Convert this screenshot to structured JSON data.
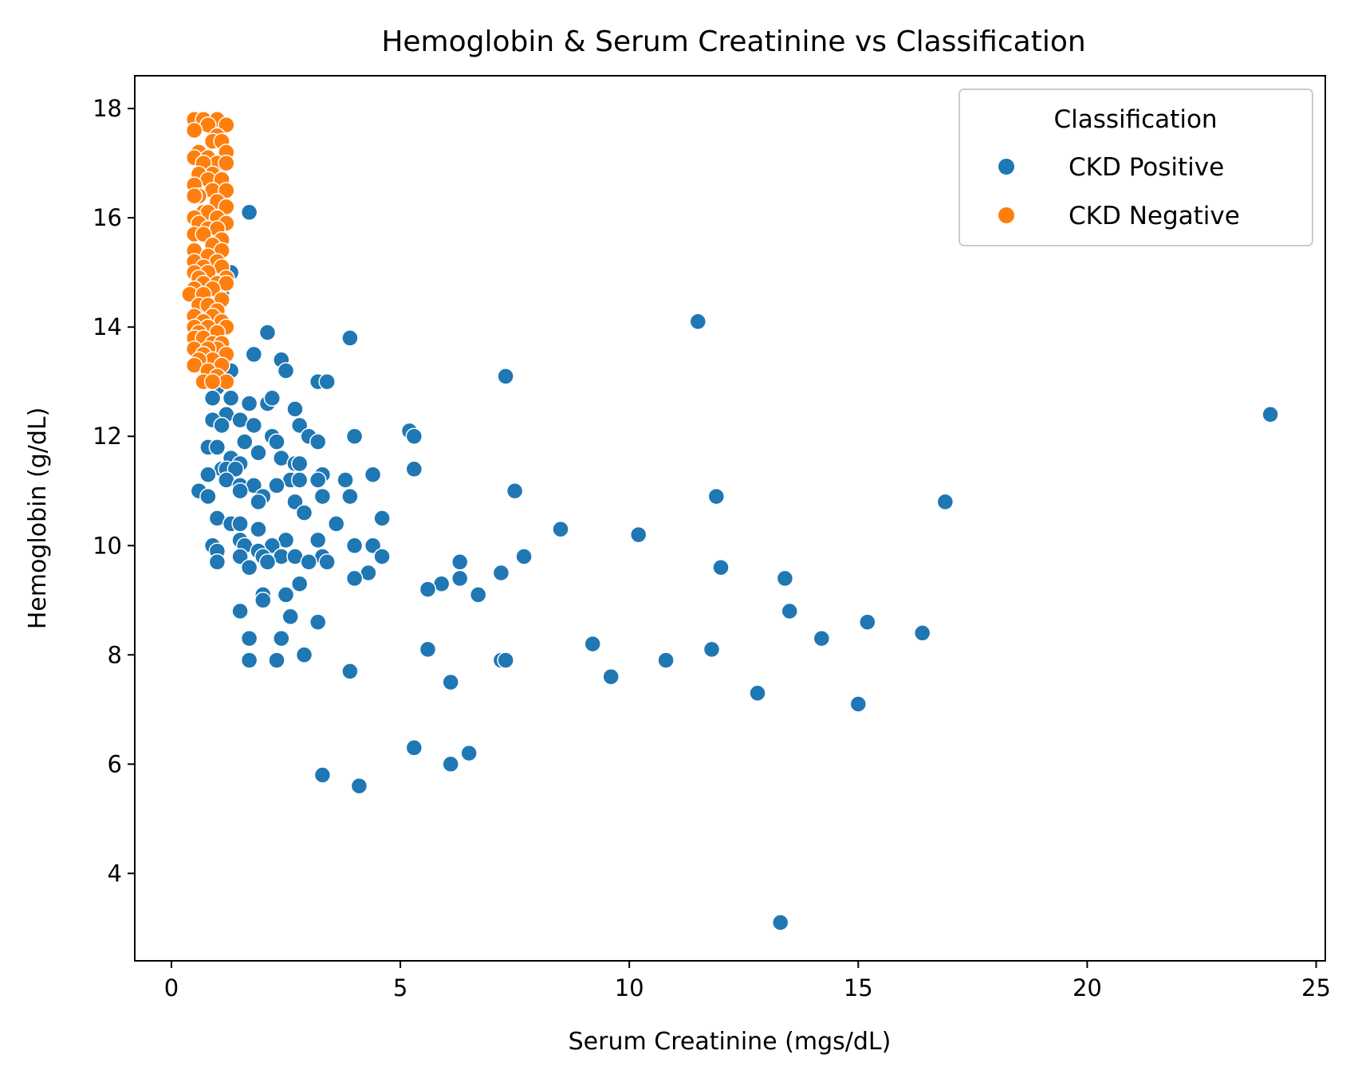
{
  "chart_data": {
    "type": "scatter",
    "title": "Hemoglobin & Serum Creatinine vs Classification",
    "xlabel": "Serum Creatinine (mgs/dL)",
    "ylabel": "Hemoglobin (g/dL)",
    "xlim": [
      -0.8,
      25.2
    ],
    "ylim": [
      2.4,
      18.6
    ],
    "x_ticks": [
      0,
      5,
      10,
      15,
      20,
      25
    ],
    "y_ticks": [
      4,
      6,
      8,
      10,
      12,
      14,
      16,
      18
    ],
    "grid": false,
    "legend": {
      "title": "Classification",
      "placement": "top-right",
      "entries": [
        "CKD Positive",
        "CKD Negative"
      ]
    },
    "series": [
      {
        "name": "CKD Positive",
        "color": "#1f77b4",
        "points": [
          [
            1.7,
            16.1
          ],
          [
            1.2,
            15.0
          ],
          [
            1.3,
            15.0
          ],
          [
            1.0,
            15.3
          ],
          [
            1.1,
            14.6
          ],
          [
            2.1,
            13.9
          ],
          [
            3.9,
            13.8
          ],
          [
            1.8,
            13.5
          ],
          [
            2.4,
            13.4
          ],
          [
            2.5,
            13.2
          ],
          [
            1.3,
            13.2
          ],
          [
            3.2,
            13.0
          ],
          [
            3.4,
            13.0
          ],
          [
            1.0,
            12.9
          ],
          [
            0.9,
            12.7
          ],
          [
            1.3,
            12.7
          ],
          [
            1.7,
            12.6
          ],
          [
            2.1,
            12.6
          ],
          [
            2.2,
            12.7
          ],
          [
            2.7,
            12.5
          ],
          [
            1.2,
            12.4
          ],
          [
            0.9,
            12.3
          ],
          [
            1.5,
            12.3
          ],
          [
            1.1,
            12.2
          ],
          [
            1.8,
            12.2
          ],
          [
            2.8,
            12.2
          ],
          [
            5.2,
            12.1
          ],
          [
            5.3,
            12.0
          ],
          [
            4.0,
            12.0
          ],
          [
            3.0,
            12.0
          ],
          [
            2.2,
            12.0
          ],
          [
            1.6,
            11.9
          ],
          [
            2.3,
            11.9
          ],
          [
            3.2,
            11.9
          ],
          [
            0.8,
            11.8
          ],
          [
            1.0,
            11.8
          ],
          [
            1.9,
            11.7
          ],
          [
            2.4,
            11.6
          ],
          [
            1.3,
            11.6
          ],
          [
            1.5,
            11.5
          ],
          [
            2.7,
            11.5
          ],
          [
            2.8,
            11.5
          ],
          [
            5.3,
            11.4
          ],
          [
            1.1,
            11.4
          ],
          [
            1.2,
            11.4
          ],
          [
            1.4,
            11.4
          ],
          [
            0.8,
            11.3
          ],
          [
            3.3,
            11.3
          ],
          [
            4.4,
            11.3
          ],
          [
            1.2,
            11.2
          ],
          [
            2.6,
            11.2
          ],
          [
            2.8,
            11.2
          ],
          [
            3.2,
            11.2
          ],
          [
            3.8,
            11.2
          ],
          [
            1.5,
            11.1
          ],
          [
            1.8,
            11.1
          ],
          [
            2.3,
            11.1
          ],
          [
            0.6,
            11.0
          ],
          [
            1.5,
            11.0
          ],
          [
            7.5,
            11.0
          ],
          [
            0.8,
            10.9
          ],
          [
            2.0,
            10.9
          ],
          [
            3.3,
            10.9
          ],
          [
            3.9,
            10.9
          ],
          [
            11.9,
            10.9
          ],
          [
            1.9,
            10.8
          ],
          [
            2.7,
            10.8
          ],
          [
            16.9,
            10.8
          ],
          [
            2.9,
            10.6
          ],
          [
            1.0,
            10.5
          ],
          [
            4.6,
            10.5
          ],
          [
            1.3,
            10.4
          ],
          [
            1.5,
            10.4
          ],
          [
            3.6,
            10.4
          ],
          [
            8.5,
            10.3
          ],
          [
            1.9,
            10.3
          ],
          [
            10.2,
            10.2
          ],
          [
            1.5,
            10.1
          ],
          [
            2.5,
            10.1
          ],
          [
            3.2,
            10.1
          ],
          [
            0.9,
            10.0
          ],
          [
            1.6,
            10.0
          ],
          [
            2.2,
            10.0
          ],
          [
            4.0,
            10.0
          ],
          [
            4.4,
            10.0
          ],
          [
            1.0,
            9.9
          ],
          [
            1.9,
            9.9
          ],
          [
            2.4,
            9.8
          ],
          [
            1.5,
            9.8
          ],
          [
            2.0,
            9.8
          ],
          [
            2.7,
            9.8
          ],
          [
            3.3,
            9.8
          ],
          [
            4.6,
            9.8
          ],
          [
            7.7,
            9.8
          ],
          [
            1.0,
            9.7
          ],
          [
            2.1,
            9.7
          ],
          [
            3.0,
            9.7
          ],
          [
            3.4,
            9.7
          ],
          [
            6.3,
            9.7
          ],
          [
            1.7,
            9.6
          ],
          [
            12.0,
            9.6
          ],
          [
            7.2,
            9.5
          ],
          [
            4.3,
            9.5
          ],
          [
            4.0,
            9.4
          ],
          [
            6.3,
            9.4
          ],
          [
            13.4,
            9.4
          ],
          [
            2.8,
            9.3
          ],
          [
            5.9,
            9.3
          ],
          [
            5.6,
            9.2
          ],
          [
            2.0,
            9.1
          ],
          [
            2.5,
            9.1
          ],
          [
            6.7,
            9.1
          ],
          [
            2.0,
            9.0
          ],
          [
            1.5,
            8.8
          ],
          [
            13.5,
            8.8
          ],
          [
            2.6,
            8.7
          ],
          [
            3.2,
            8.6
          ],
          [
            15.2,
            8.6
          ],
          [
            16.4,
            8.4
          ],
          [
            1.7,
            8.3
          ],
          [
            2.4,
            8.3
          ],
          [
            14.2,
            8.3
          ],
          [
            9.2,
            8.2
          ],
          [
            5.6,
            8.1
          ],
          [
            11.8,
            8.1
          ],
          [
            2.9,
            8.0
          ],
          [
            1.7,
            7.9
          ],
          [
            2.3,
            7.9
          ],
          [
            7.2,
            7.9
          ],
          [
            7.3,
            7.9
          ],
          [
            10.8,
            7.9
          ],
          [
            3.9,
            7.7
          ],
          [
            9.6,
            7.6
          ],
          [
            6.1,
            7.5
          ],
          [
            12.8,
            7.3
          ],
          [
            15.0,
            7.1
          ],
          [
            5.3,
            6.3
          ],
          [
            6.5,
            6.2
          ],
          [
            6.1,
            6.0
          ],
          [
            3.3,
            5.8
          ],
          [
            4.1,
            5.6
          ],
          [
            11.5,
            14.1
          ],
          [
            7.3,
            13.1
          ],
          [
            24.0,
            12.4
          ],
          [
            13.3,
            3.1
          ]
        ]
      },
      {
        "name": "CKD Negative",
        "color": "#ff7f0e",
        "points": [
          [
            0.5,
            17.8
          ],
          [
            0.7,
            17.8
          ],
          [
            1.0,
            17.8
          ],
          [
            0.8,
            17.7
          ],
          [
            1.2,
            17.7
          ],
          [
            0.5,
            17.6
          ],
          [
            1.0,
            17.5
          ],
          [
            0.9,
            17.4
          ],
          [
            1.1,
            17.4
          ],
          [
            0.6,
            17.2
          ],
          [
            1.2,
            17.2
          ],
          [
            0.5,
            17.1
          ],
          [
            0.8,
            17.1
          ],
          [
            1.0,
            17.0
          ],
          [
            0.7,
            17.0
          ],
          [
            1.2,
            17.0
          ],
          [
            0.9,
            16.8
          ],
          [
            0.6,
            16.8
          ],
          [
            0.8,
            16.7
          ],
          [
            1.1,
            16.7
          ],
          [
            0.5,
            16.6
          ],
          [
            0.9,
            16.5
          ],
          [
            1.2,
            16.5
          ],
          [
            0.6,
            16.4
          ],
          [
            0.5,
            16.4
          ],
          [
            1.0,
            16.3
          ],
          [
            1.2,
            16.2
          ],
          [
            0.7,
            16.1
          ],
          [
            0.8,
            16.1
          ],
          [
            1.0,
            16.0
          ],
          [
            0.5,
            16.0
          ],
          [
            1.2,
            15.9
          ],
          [
            0.6,
            15.9
          ],
          [
            0.8,
            15.8
          ],
          [
            1.0,
            15.8
          ],
          [
            0.5,
            15.7
          ],
          [
            0.7,
            15.7
          ],
          [
            1.1,
            15.6
          ],
          [
            0.9,
            15.5
          ],
          [
            1.1,
            15.4
          ],
          [
            0.5,
            15.4
          ],
          [
            0.8,
            15.3
          ],
          [
            1.0,
            15.2
          ],
          [
            0.5,
            15.2
          ],
          [
            0.7,
            15.1
          ],
          [
            1.1,
            15.1
          ],
          [
            0.5,
            15.0
          ],
          [
            0.8,
            15.0
          ],
          [
            1.2,
            14.9
          ],
          [
            0.6,
            14.9
          ],
          [
            0.7,
            14.8
          ],
          [
            1.0,
            14.8
          ],
          [
            1.2,
            14.8
          ],
          [
            0.5,
            14.7
          ],
          [
            0.9,
            14.7
          ],
          [
            0.4,
            14.6
          ],
          [
            0.7,
            14.6
          ],
          [
            1.1,
            14.5
          ],
          [
            0.6,
            14.4
          ],
          [
            0.8,
            14.4
          ],
          [
            1.0,
            14.3
          ],
          [
            0.5,
            14.2
          ],
          [
            0.9,
            14.2
          ],
          [
            1.1,
            14.1
          ],
          [
            0.7,
            14.1
          ],
          [
            0.5,
            14.0
          ],
          [
            0.8,
            14.0
          ],
          [
            1.2,
            14.0
          ],
          [
            0.6,
            13.9
          ],
          [
            1.0,
            13.9
          ],
          [
            0.5,
            13.8
          ],
          [
            0.7,
            13.8
          ],
          [
            0.9,
            13.7
          ],
          [
            1.1,
            13.7
          ],
          [
            1.0,
            13.6
          ],
          [
            0.5,
            13.6
          ],
          [
            0.8,
            13.6
          ],
          [
            1.2,
            13.5
          ],
          [
            0.7,
            13.5
          ],
          [
            0.9,
            13.4
          ],
          [
            0.6,
            13.4
          ],
          [
            1.1,
            13.3
          ],
          [
            0.5,
            13.3
          ],
          [
            0.8,
            13.2
          ],
          [
            1.0,
            13.1
          ],
          [
            0.7,
            13.0
          ],
          [
            1.2,
            13.0
          ],
          [
            0.9,
            13.0
          ]
        ]
      }
    ]
  }
}
